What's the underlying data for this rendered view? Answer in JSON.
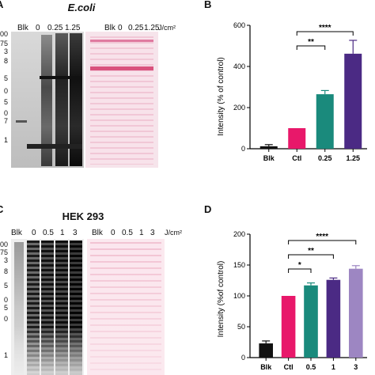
{
  "panelA": {
    "letter": "A",
    "title": "E.coli",
    "lane_labels": [
      "Blk",
      "0",
      "0.25",
      "1.25"
    ],
    "unit": "J/cm²",
    "marker_labels": [
      "00",
      "75",
      "3",
      "8",
      "5",
      "0",
      "5",
      "0",
      "7",
      "1"
    ]
  },
  "panelC": {
    "letter": "C",
    "title": "HEK 293",
    "lane_labels": [
      "Blk",
      "0",
      "0.5",
      "1",
      "3"
    ],
    "unit": "J/cm²",
    "marker_labels": [
      "00",
      "75",
      "3",
      "8",
      "5",
      "0",
      "5",
      "0",
      "1"
    ]
  },
  "colors": {
    "blk": "#111111",
    "ctl": "#e8186a",
    "mid": "#1a8a7c",
    "high": "#4b2a84",
    "light": "#9d86c2",
    "ponceau": "#e9a8bd"
  },
  "chart_data": [
    {
      "panel": "B",
      "type": "bar",
      "ylabel": "Intensity (% of control)",
      "ylim": [
        0,
        600
      ],
      "yticks": [
        0,
        200,
        400,
        600
      ],
      "categories": [
        "Blk",
        "Ctl",
        "0.25",
        "1.25"
      ],
      "values": [
        12,
        100,
        265,
        462
      ],
      "errors": [
        8,
        0,
        18,
        65
      ],
      "colors": [
        "#111111",
        "#e8186a",
        "#1a8a7c",
        "#4b2a84"
      ],
      "significance": [
        {
          "from": 1,
          "to": 2,
          "label": "**"
        },
        {
          "from": 1,
          "to": 3,
          "label": "****"
        }
      ]
    },
    {
      "panel": "D",
      "type": "bar",
      "ylabel": "Intensity (%of control)",
      "ylim": [
        0,
        200
      ],
      "yticks": [
        0,
        50,
        100,
        150,
        200
      ],
      "categories": [
        "Blk",
        "Ctl",
        "0.5",
        "1",
        "3"
      ],
      "values": [
        23,
        100,
        117,
        126,
        144
      ],
      "errors": [
        4,
        0,
        4,
        3,
        5
      ],
      "colors": [
        "#111111",
        "#e8186a",
        "#1a8a7c",
        "#4b2a84",
        "#9d86c2"
      ],
      "significance": [
        {
          "from": 1,
          "to": 2,
          "label": "*"
        },
        {
          "from": 1,
          "to": 3,
          "label": "**"
        },
        {
          "from": 1,
          "to": 4,
          "label": "****"
        }
      ]
    }
  ]
}
